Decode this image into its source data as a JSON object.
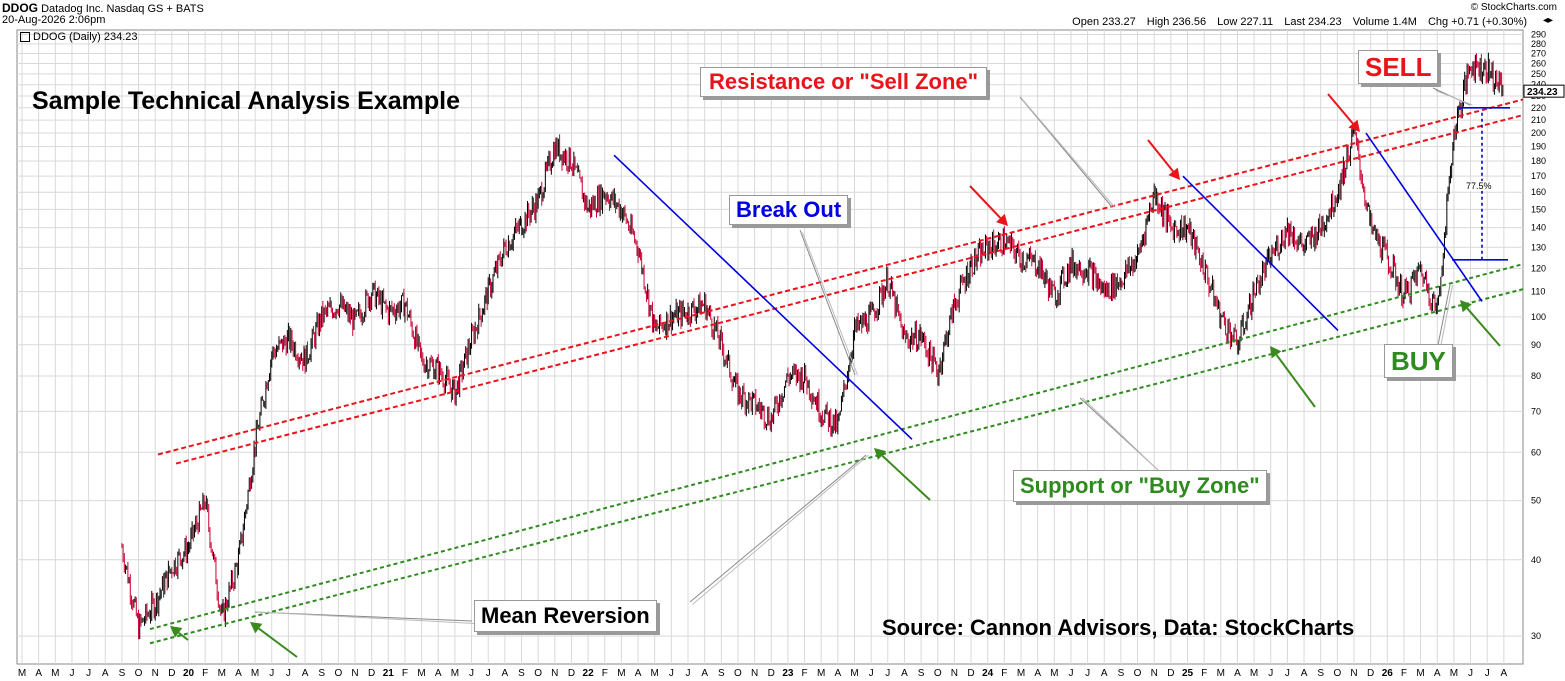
{
  "header": {
    "symbol": "DDOG",
    "company": "Datadog Inc.",
    "exchange": "Nasdaq GS + BATS",
    "timestamp": "20-Aug-2026 2:06pm",
    "credit": "© StockCharts.com",
    "open_label": "Open",
    "open": "233.27",
    "high_label": "High",
    "high": "236.56",
    "low_label": "Low",
    "low": "227.11",
    "last_label": "Last",
    "last": "234.23",
    "volume_label": "Volume",
    "volume": "1.4M",
    "chg_label": "Chg",
    "chg": "+0.71 (+0.30%)",
    "legend": "DDOG (Daily) 234.23",
    "price_tag": "234.23"
  },
  "annotations": {
    "title": "Sample Technical Analysis Example",
    "resistance": "Resistance or \"Sell Zone\"",
    "breakout": "Break Out",
    "support": "Support or \"Buy Zone\"",
    "mean_reversion": "Mean Reversion",
    "source": "Source: Cannon Advisors, Data: StockCharts",
    "sell": "SELL",
    "buy": "BUY",
    "pct": "77.5%"
  },
  "colors": {
    "price_bar": "#000000",
    "price_bar_down": "#cc0033",
    "resistance": "#e8141a",
    "support": "#2e8b1e",
    "trendline": "#0000e0",
    "arrow_red": "#e8141a",
    "arrow_green": "#3a8a1e",
    "grid": "#d9d9d9"
  },
  "chart_data": {
    "type": "line",
    "scale": "log",
    "ylim": [
      27,
      295
    ],
    "y_ticks": [
      30,
      40,
      50,
      60,
      70,
      80,
      90,
      100,
      110,
      120,
      130,
      140,
      150,
      160,
      170,
      180,
      190,
      200,
      210,
      220,
      230,
      240,
      250,
      260,
      270,
      280,
      290
    ],
    "x_tick_labels": [
      "M",
      "A",
      "M",
      "J",
      "J",
      "A",
      "S",
      "O",
      "N",
      "D",
      "20",
      "F",
      "M",
      "A",
      "M",
      "J",
      "J",
      "A",
      "S",
      "O",
      "N",
      "D",
      "21",
      "F",
      "M",
      "A",
      "M",
      "J",
      "J",
      "A",
      "S",
      "O",
      "N",
      "D",
      "22",
      "F",
      "M",
      "A",
      "M",
      "J",
      "J",
      "A",
      "S",
      "O",
      "N",
      "D",
      "23",
      "F",
      "M",
      "A",
      "M",
      "J",
      "J",
      "A",
      "S",
      "O",
      "N",
      "D",
      "24",
      "F",
      "M",
      "A",
      "M",
      "J",
      "J",
      "A",
      "S",
      "O",
      "N",
      "D",
      "25",
      "F",
      "M",
      "A",
      "M",
      "J",
      "J",
      "A",
      "S",
      "O",
      "N",
      "D",
      "26",
      "F",
      "M",
      "A",
      "M",
      "J",
      "J",
      "A"
    ],
    "series": [
      {
        "name": "DDOG (Daily)",
        "points": [
          [
            "2019-09",
            42
          ],
          [
            "2019-10",
            31
          ],
          [
            "2019-11",
            34
          ],
          [
            "2019-12",
            39
          ],
          [
            "2020-01",
            42
          ],
          [
            "2020-02",
            50
          ],
          [
            "2020-03",
            32
          ],
          [
            "2020-04",
            40
          ],
          [
            "2020-05",
            62
          ],
          [
            "2020-06",
            87
          ],
          [
            "2020-07",
            92
          ],
          [
            "2020-08",
            85
          ],
          [
            "2020-09",
            100
          ],
          [
            "2020-10",
            105
          ],
          [
            "2020-11",
            98
          ],
          [
            "2020-12",
            110
          ],
          [
            "2021-01",
            102
          ],
          [
            "2021-02",
            105
          ],
          [
            "2021-03",
            85
          ],
          [
            "2021-04",
            82
          ],
          [
            "2021-05",
            75
          ],
          [
            "2021-06",
            92
          ],
          [
            "2021-07",
            110
          ],
          [
            "2021-08",
            130
          ],
          [
            "2021-09",
            142
          ],
          [
            "2021-10",
            155
          ],
          [
            "2021-11",
            190
          ],
          [
            "2021-12",
            180
          ],
          [
            "2022-01",
            150
          ],
          [
            "2022-02",
            160
          ],
          [
            "2022-03",
            150
          ],
          [
            "2022-04",
            130
          ],
          [
            "2022-05",
            95
          ],
          [
            "2022-06",
            100
          ],
          [
            "2022-07",
            102
          ],
          [
            "2022-08",
            105
          ],
          [
            "2022-09",
            90
          ],
          [
            "2022-10",
            75
          ],
          [
            "2022-11",
            72
          ],
          [
            "2022-12",
            68
          ],
          [
            "2023-01",
            80
          ],
          [
            "2023-02",
            80
          ],
          [
            "2023-03",
            70
          ],
          [
            "2023-04",
            66
          ],
          [
            "2023-05",
            95
          ],
          [
            "2023-06",
            100
          ],
          [
            "2023-07",
            115
          ],
          [
            "2023-08",
            92
          ],
          [
            "2023-09",
            93
          ],
          [
            "2023-10",
            81
          ],
          [
            "2023-11",
            105
          ],
          [
            "2023-12",
            122
          ],
          [
            "2024-01",
            130
          ],
          [
            "2024-02",
            133
          ],
          [
            "2024-03",
            125
          ],
          [
            "2024-04",
            122
          ],
          [
            "2024-05",
            108
          ],
          [
            "2024-06",
            122
          ],
          [
            "2024-07",
            120
          ],
          [
            "2024-08",
            110
          ],
          [
            "2024-09",
            115
          ],
          [
            "2024-10",
            125
          ],
          [
            "2024-11",
            160
          ],
          [
            "2024-12",
            140
          ],
          [
            "2025-01",
            140
          ],
          [
            "2025-02",
            120
          ],
          [
            "2025-03",
            100
          ],
          [
            "2025-04",
            90
          ],
          [
            "2025-05",
            110
          ],
          [
            "2025-06",
            125
          ],
          [
            "2025-07",
            140
          ],
          [
            "2025-08",
            130
          ],
          [
            "2025-09",
            140
          ],
          [
            "2025-10",
            160
          ],
          [
            "2025-11",
            200
          ],
          [
            "2025-12",
            140
          ],
          [
            "2026-01",
            125
          ],
          [
            "2026-02",
            108
          ],
          [
            "2026-03",
            120
          ],
          [
            "2026-04",
            102
          ],
          [
            "2026-05",
            200
          ],
          [
            "2026-06",
            260
          ],
          [
            "2026-07",
            255
          ],
          [
            "2026-08",
            234.23
          ]
        ]
      }
    ]
  }
}
